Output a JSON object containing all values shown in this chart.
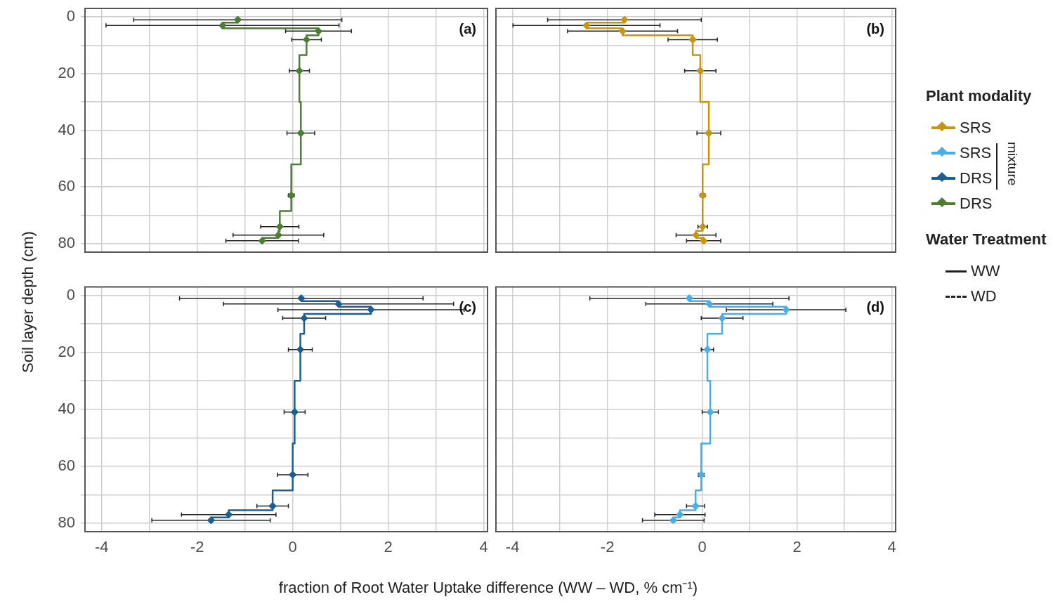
{
  "chart_data": [
    {
      "type": "step",
      "orientation": "horizontal",
      "ylabel": "Soil layer depth (cm)",
      "annotations": [
        "(a)"
      ],
      "legend": "right",
      "marker": "diamond",
      "grid": true,
      "tick_labels": "y",
      "xlim": [
        -4.35,
        4.08
      ],
      "xticks": [
        -4,
        {
          "value": -3,
          "label": null
        },
        -2,
        {
          "value": -1,
          "label": null
        },
        0,
        {
          "value": 1,
          "label": null
        },
        2,
        {
          "value": 3,
          "label": null
        },
        4
      ],
      "ylim": [
        83,
        -3
      ],
      "yticks": [
        0,
        {
          "value": 10,
          "label": null
        },
        20,
        {
          "value": 30,
          "label": null
        },
        40,
        {
          "value": 50,
          "label": null
        },
        60,
        {
          "value": 70,
          "label": null
        },
        80
      ],
      "series": [
        {
          "name": "DRS",
          "color": "#4a8030",
          "x": [
            1,
            3,
            5,
            8,
            19,
            41,
            63,
            74,
            77,
            79
          ],
          "values": [
            -1.15,
            -1.47,
            0.54,
            0.29,
            0.14,
            0.17,
            -0.03,
            -0.27,
            -0.3,
            -0.64
          ],
          "errors": [
            2.18,
            2.44,
            0.69,
            0.31,
            0.21,
            0.29,
            0.06,
            0.4,
            0.95,
            0.76
          ]
        }
      ]
    },
    {
      "type": "step",
      "orientation": "horizontal",
      "annotations": [
        "(b)",
        "mixture"
      ],
      "legend_title": "Plant modality",
      "legend": "right",
      "marker": "diamond",
      "grid": true,
      "tick_labels": false,
      "xlim": [
        -4.35,
        4.08
      ],
      "xticks": [
        -4,
        {
          "value": -3,
          "label": null
        },
        -2,
        {
          "value": -1,
          "label": null
        },
        0,
        {
          "value": 1,
          "label": null
        },
        2,
        {
          "value": 3,
          "label": null
        },
        4
      ],
      "ylim": [
        83,
        -3
      ],
      "yticks": [
        0,
        {
          "value": 10,
          "label": null
        },
        20,
        {
          "value": 30,
          "label": null
        },
        40,
        {
          "value": 50,
          "label": null
        },
        60,
        {
          "value": 70,
          "label": null
        },
        80
      ],
      "series": [
        {
          "name": "SRS",
          "color": "#c8960c",
          "x": [
            1,
            3,
            5,
            8,
            19,
            41,
            63,
            74,
            77,
            79
          ],
          "values": [
            -1.64,
            -2.44,
            -1.68,
            -0.2,
            -0.04,
            0.14,
            0.01,
            0.01,
            -0.13,
            0.03
          ],
          "errors": [
            1.62,
            1.55,
            1.16,
            0.52,
            0.33,
            0.25,
            0.05,
            0.1,
            0.42,
            0.36
          ]
        }
      ]
    },
    {
      "type": "step",
      "orientation": "horizontal",
      "xlabel": "fraction of Root Water Uptake difference (WW – WD, % cm⁻¹)",
      "annotations": [
        "(c)"
      ],
      "legend": "right",
      "marker": "diamond",
      "grid": true,
      "xlim": [
        -4.35,
        4.08
      ],
      "xticks": [
        -4,
        {
          "value": -3,
          "label": null
        },
        -2,
        {
          "value": -1,
          "label": null
        },
        0,
        {
          "value": 1,
          "label": null
        },
        2,
        {
          "value": 3,
          "label": null
        },
        4
      ],
      "ylim": [
        83,
        -3
      ],
      "yticks": [
        0,
        {
          "value": 10,
          "label": null
        },
        20,
        {
          "value": 30,
          "label": null
        },
        40,
        {
          "value": 50,
          "label": null
        },
        60,
        {
          "value": 70,
          "label": null
        },
        80
      ],
      "series": [
        {
          "name": "DRS",
          "color": "#1a5f92",
          "x": [
            1,
            3,
            5,
            8,
            19,
            41,
            63,
            74,
            77,
            79
          ],
          "values": [
            0.18,
            0.96,
            1.64,
            0.24,
            0.16,
            0.04,
            0,
            -0.42,
            -1.34,
            -1.71
          ],
          "errors": [
            2.55,
            2.41,
            1.95,
            0.45,
            0.25,
            0.22,
            0.32,
            0.33,
            0.99,
            1.24
          ]
        }
      ]
    },
    {
      "type": "step",
      "orientation": "horizontal",
      "annotations": [
        "(d)"
      ],
      "legend": "right",
      "marker": "diamond",
      "grid": true,
      "tick_labels": "x",
      "xlim": [
        -4.35,
        4.08
      ],
      "xticks": [
        -4,
        {
          "value": -3,
          "label": null
        },
        -2,
        {
          "value": -1,
          "label": null
        },
        0,
        {
          "value": 1,
          "label": null
        },
        2,
        {
          "value": 3,
          "label": null
        },
        4
      ],
      "ylim": [
        83,
        -3
      ],
      "yticks": [
        0,
        {
          "value": 10,
          "label": null
        },
        20,
        {
          "value": 30,
          "label": null
        },
        40,
        {
          "value": 50,
          "label": null
        },
        60,
        {
          "value": 70,
          "label": null
        },
        80
      ],
      "series": [
        {
          "name": "SRS",
          "color": "#4aaee6",
          "x": [
            1,
            3,
            5,
            8,
            19,
            41,
            63,
            74,
            77,
            79
          ],
          "values": [
            -0.27,
            0.15,
            1.77,
            0.42,
            0.11,
            0.17,
            -0.02,
            -0.14,
            -0.47,
            -0.61
          ],
          "errors": [
            2.1,
            1.34,
            1.26,
            0.44,
            0.13,
            0.17,
            0.06,
            0.19,
            0.53,
            0.65
          ]
        }
      ]
    },
    {
      "type": "other",
      "title": "Water Treatment",
      "series": [
        {
          "name": "WW",
          "line_style": "solid"
        },
        {
          "name": "WD",
          "line_style": "dashed"
        }
      ]
    }
  ]
}
